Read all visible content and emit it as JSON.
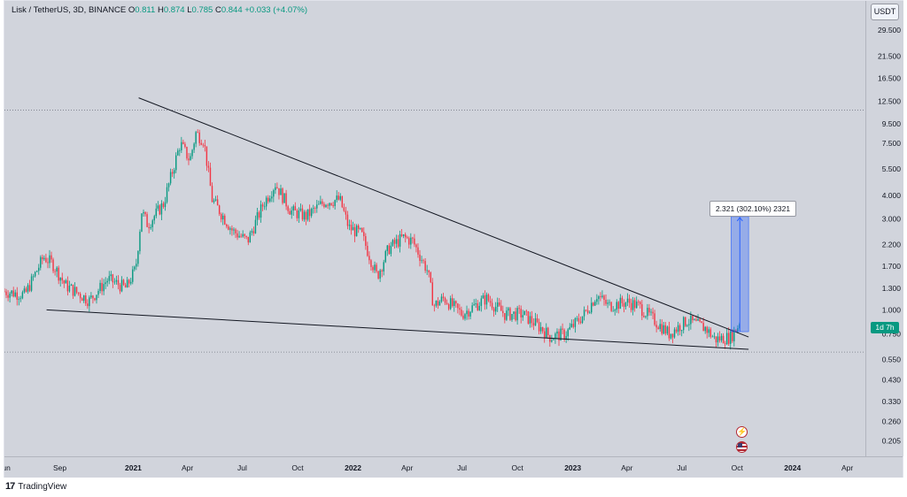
{
  "legend": {
    "symbol": "Lisk / TetherUS, 3D, BINANCE",
    "open_label": "O",
    "open": "0.811",
    "high_label": "H",
    "high": "0.874",
    "low_label": "L",
    "low": "0.785",
    "close_label": "C",
    "close": "0.844",
    "change": "+0.033 (+4.07%)"
  },
  "price_axis": {
    "currency": "USDT",
    "countdown": "1d 7h"
  },
  "measure": {
    "label": "2.321 (302.10%) 2321"
  },
  "footer": {
    "brand": "TradingView",
    "logo_text": "17"
  },
  "colors": {
    "up": "#089981",
    "down": "#f23645",
    "background": "#d1d4dc",
    "trendline": "#131722",
    "measure_fill": "#2962ff"
  },
  "icons": [
    "lightning-icon",
    "us-flag-icon",
    "tradingview-logo-icon"
  ],
  "chart_data": {
    "type": "candlestick",
    "scale": "log",
    "interval": "3D",
    "x_range": [
      "2020-06-01",
      "2024-05-01"
    ],
    "y_range": [
      0.17,
      42
    ],
    "grid": false,
    "price_ticks": [
      29.5,
      21.5,
      16.5,
      12.5,
      9.5,
      7.5,
      5.5,
      4.0,
      3.0,
      2.2,
      1.7,
      1.3,
      1.0,
      0.75,
      0.55,
      0.43,
      0.33,
      0.26,
      0.205
    ],
    "price_tick_labels": [
      "29.500",
      "21.500",
      "16.500",
      "12.500",
      "9.500",
      "7.500",
      "5.500",
      "4.000",
      "3.000",
      "2.200",
      "1.700",
      "1.300",
      "1.000",
      "0.750",
      "0.550",
      "0.430",
      "0.330",
      "0.260",
      "0.205"
    ],
    "time_ticks": [
      {
        "date": "2020-06-01",
        "label": "Jun"
      },
      {
        "date": "2020-09-01",
        "label": "Sep"
      },
      {
        "date": "2021-01-01",
        "label": "2021"
      },
      {
        "date": "2021-04-01",
        "label": "Apr"
      },
      {
        "date": "2021-07-01",
        "label": "Jul"
      },
      {
        "date": "2021-10-01",
        "label": "Oct"
      },
      {
        "date": "2022-01-01",
        "label": "2022"
      },
      {
        "date": "2022-04-01",
        "label": "Apr"
      },
      {
        "date": "2022-07-01",
        "label": "Jul"
      },
      {
        "date": "2022-10-01",
        "label": "Oct"
      },
      {
        "date": "2023-01-01",
        "label": "2023"
      },
      {
        "date": "2023-04-01",
        "label": "Apr"
      },
      {
        "date": "2023-07-01",
        "label": "Jul"
      },
      {
        "date": "2023-10-01",
        "label": "Oct"
      },
      {
        "date": "2024-01-01",
        "label": "2024"
      },
      {
        "date": "2024-04-01",
        "label": "Apr"
      }
    ],
    "close_anchors": [
      [
        "2020-06-01",
        1.25
      ],
      [
        "2020-07-05",
        1.2
      ],
      [
        "2020-08-05",
        1.9
      ],
      [
        "2020-08-20",
        1.75
      ],
      [
        "2020-09-10",
        1.35
      ],
      [
        "2020-10-20",
        1.12
      ],
      [
        "2020-11-20",
        1.45
      ],
      [
        "2020-12-20",
        1.3
      ],
      [
        "2021-01-05",
        1.65
      ],
      [
        "2021-01-15",
        3.3
      ],
      [
        "2021-01-25",
        2.8
      ],
      [
        "2021-02-20",
        3.6
      ],
      [
        "2021-03-20",
        7.5
      ],
      [
        "2021-04-05",
        6.1
      ],
      [
        "2021-04-15",
        8.5
      ],
      [
        "2021-04-28",
        7.8
      ],
      [
        "2021-05-12",
        3.8
      ],
      [
        "2021-06-15",
        2.6
      ],
      [
        "2021-07-10",
        2.3
      ],
      [
        "2021-08-05",
        3.6
      ],
      [
        "2021-08-25",
        4.6
      ],
      [
        "2021-09-20",
        3.3
      ],
      [
        "2021-10-15",
        3.1
      ],
      [
        "2021-11-15",
        3.7
      ],
      [
        "2021-12-10",
        3.8
      ],
      [
        "2021-12-25",
        2.7
      ],
      [
        "2022-01-15",
        2.5
      ],
      [
        "2022-02-10",
        1.5
      ],
      [
        "2022-03-01",
        2.1
      ],
      [
        "2022-03-25",
        2.4
      ],
      [
        "2022-04-10",
        2.3
      ],
      [
        "2022-05-05",
        1.6
      ],
      [
        "2022-05-15",
        1.05
      ],
      [
        "2022-06-01",
        1.15
      ],
      [
        "2022-07-01",
        0.95
      ],
      [
        "2022-08-10",
        1.15
      ],
      [
        "2022-09-10",
        0.95
      ],
      [
        "2022-10-10",
        0.95
      ],
      [
        "2022-11-10",
        0.8
      ],
      [
        "2022-11-25",
        0.72
      ],
      [
        "2022-12-20",
        0.75
      ],
      [
        "2023-01-20",
        0.95
      ],
      [
        "2023-02-10",
        1.2
      ],
      [
        "2023-03-01",
        1.05
      ],
      [
        "2023-04-01",
        1.1
      ],
      [
        "2023-04-20",
        1.05
      ],
      [
        "2023-06-10",
        0.75
      ],
      [
        "2023-07-10",
        0.88
      ],
      [
        "2023-08-10",
        0.8
      ],
      [
        "2023-08-25",
        0.7
      ],
      [
        "2023-09-20",
        0.72
      ],
      [
        "2023-10-05",
        0.844
      ]
    ],
    "price_line": {
      "label": "",
      "value": 1.97
    },
    "dotted_levels": [
      11.2,
      0.6
    ],
    "trendlines": [
      {
        "name": "upper",
        "from": [
          "2021-01-10",
          13.0
        ],
        "to": [
          "2023-10-20",
          0.72
        ]
      },
      {
        "name": "lower",
        "from": [
          "2020-08-10",
          1.0
        ],
        "to": [
          "2023-10-20",
          0.62
        ]
      }
    ],
    "measure": {
      "from_date": "2023-09-21",
      "to_date": "2023-10-20",
      "start_price": 0.768,
      "end_price": 3.09,
      "change": "2.321",
      "change_pct": "302.10%"
    },
    "last_close": 0.844
  }
}
